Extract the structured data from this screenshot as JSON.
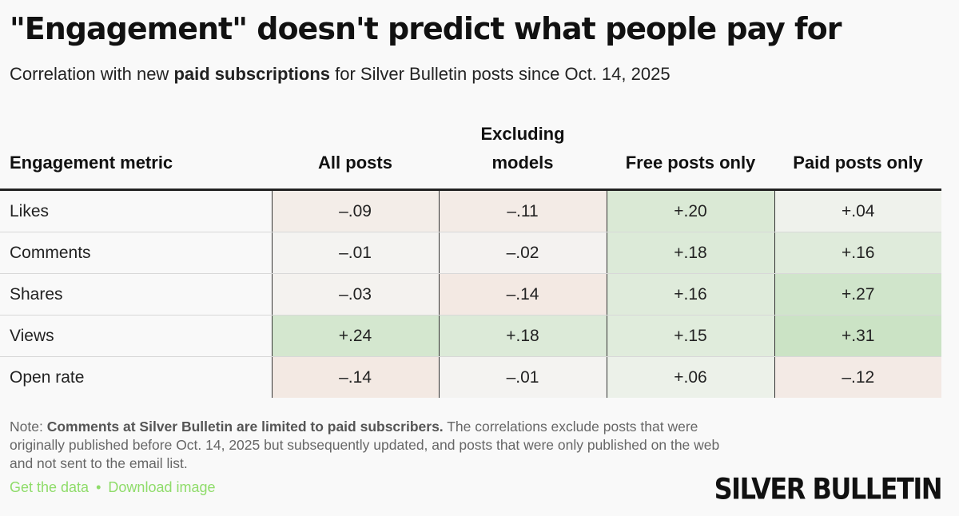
{
  "title": "\"Engagement\" doesn't predict what people pay for",
  "subtitle": {
    "prefix": "Correlation with new ",
    "bold": "paid subscriptions",
    "suffix": " for Silver Bulletin posts since Oct. 14, 2025"
  },
  "colors": {
    "positive": "#4caf3a",
    "negative": "#e8845a",
    "neutral": "#f4f4f2",
    "link": "#8fdc6a"
  },
  "chart_data": {
    "type": "table",
    "columns": [
      "Engagement metric",
      "All posts",
      "Excluding models",
      "Free posts only",
      "Paid posts only"
    ],
    "rows": [
      {
        "metric": "Likes",
        "values": [
          -0.09,
          -0.11,
          0.2,
          0.04
        ],
        "labels": [
          "–.09",
          "–.11",
          "+.20",
          "+.04"
        ]
      },
      {
        "metric": "Comments",
        "values": [
          -0.01,
          -0.02,
          0.18,
          0.16
        ],
        "labels": [
          "–.01",
          "–.02",
          "+.18",
          "+.16"
        ]
      },
      {
        "metric": "Shares",
        "values": [
          -0.03,
          -0.14,
          0.16,
          0.27
        ],
        "labels": [
          "–.03",
          "–.14",
          "+.16",
          "+.27"
        ]
      },
      {
        "metric": "Views",
        "values": [
          0.24,
          0.18,
          0.15,
          0.31
        ],
        "labels": [
          "+.24",
          "+.18",
          "+.15",
          "+.31"
        ]
      },
      {
        "metric": "Open rate",
        "values": [
          -0.14,
          -0.01,
          0.06,
          -0.12
        ],
        "labels": [
          "–.14",
          "–.01",
          "+.06",
          "–.12"
        ]
      }
    ]
  },
  "note": {
    "prefix": "Note: ",
    "bold": "Comments at Silver Bulletin are limited to paid subscribers.",
    "text": " The correlations exclude posts that were originally published before Oct. 14, 2025 but subsequently updated, and posts that were only published on the web and not sent to the email list."
  },
  "links": {
    "get_data": "Get the data",
    "separator": "•",
    "download": "Download image"
  },
  "brand": "SILVER BULLETIN"
}
